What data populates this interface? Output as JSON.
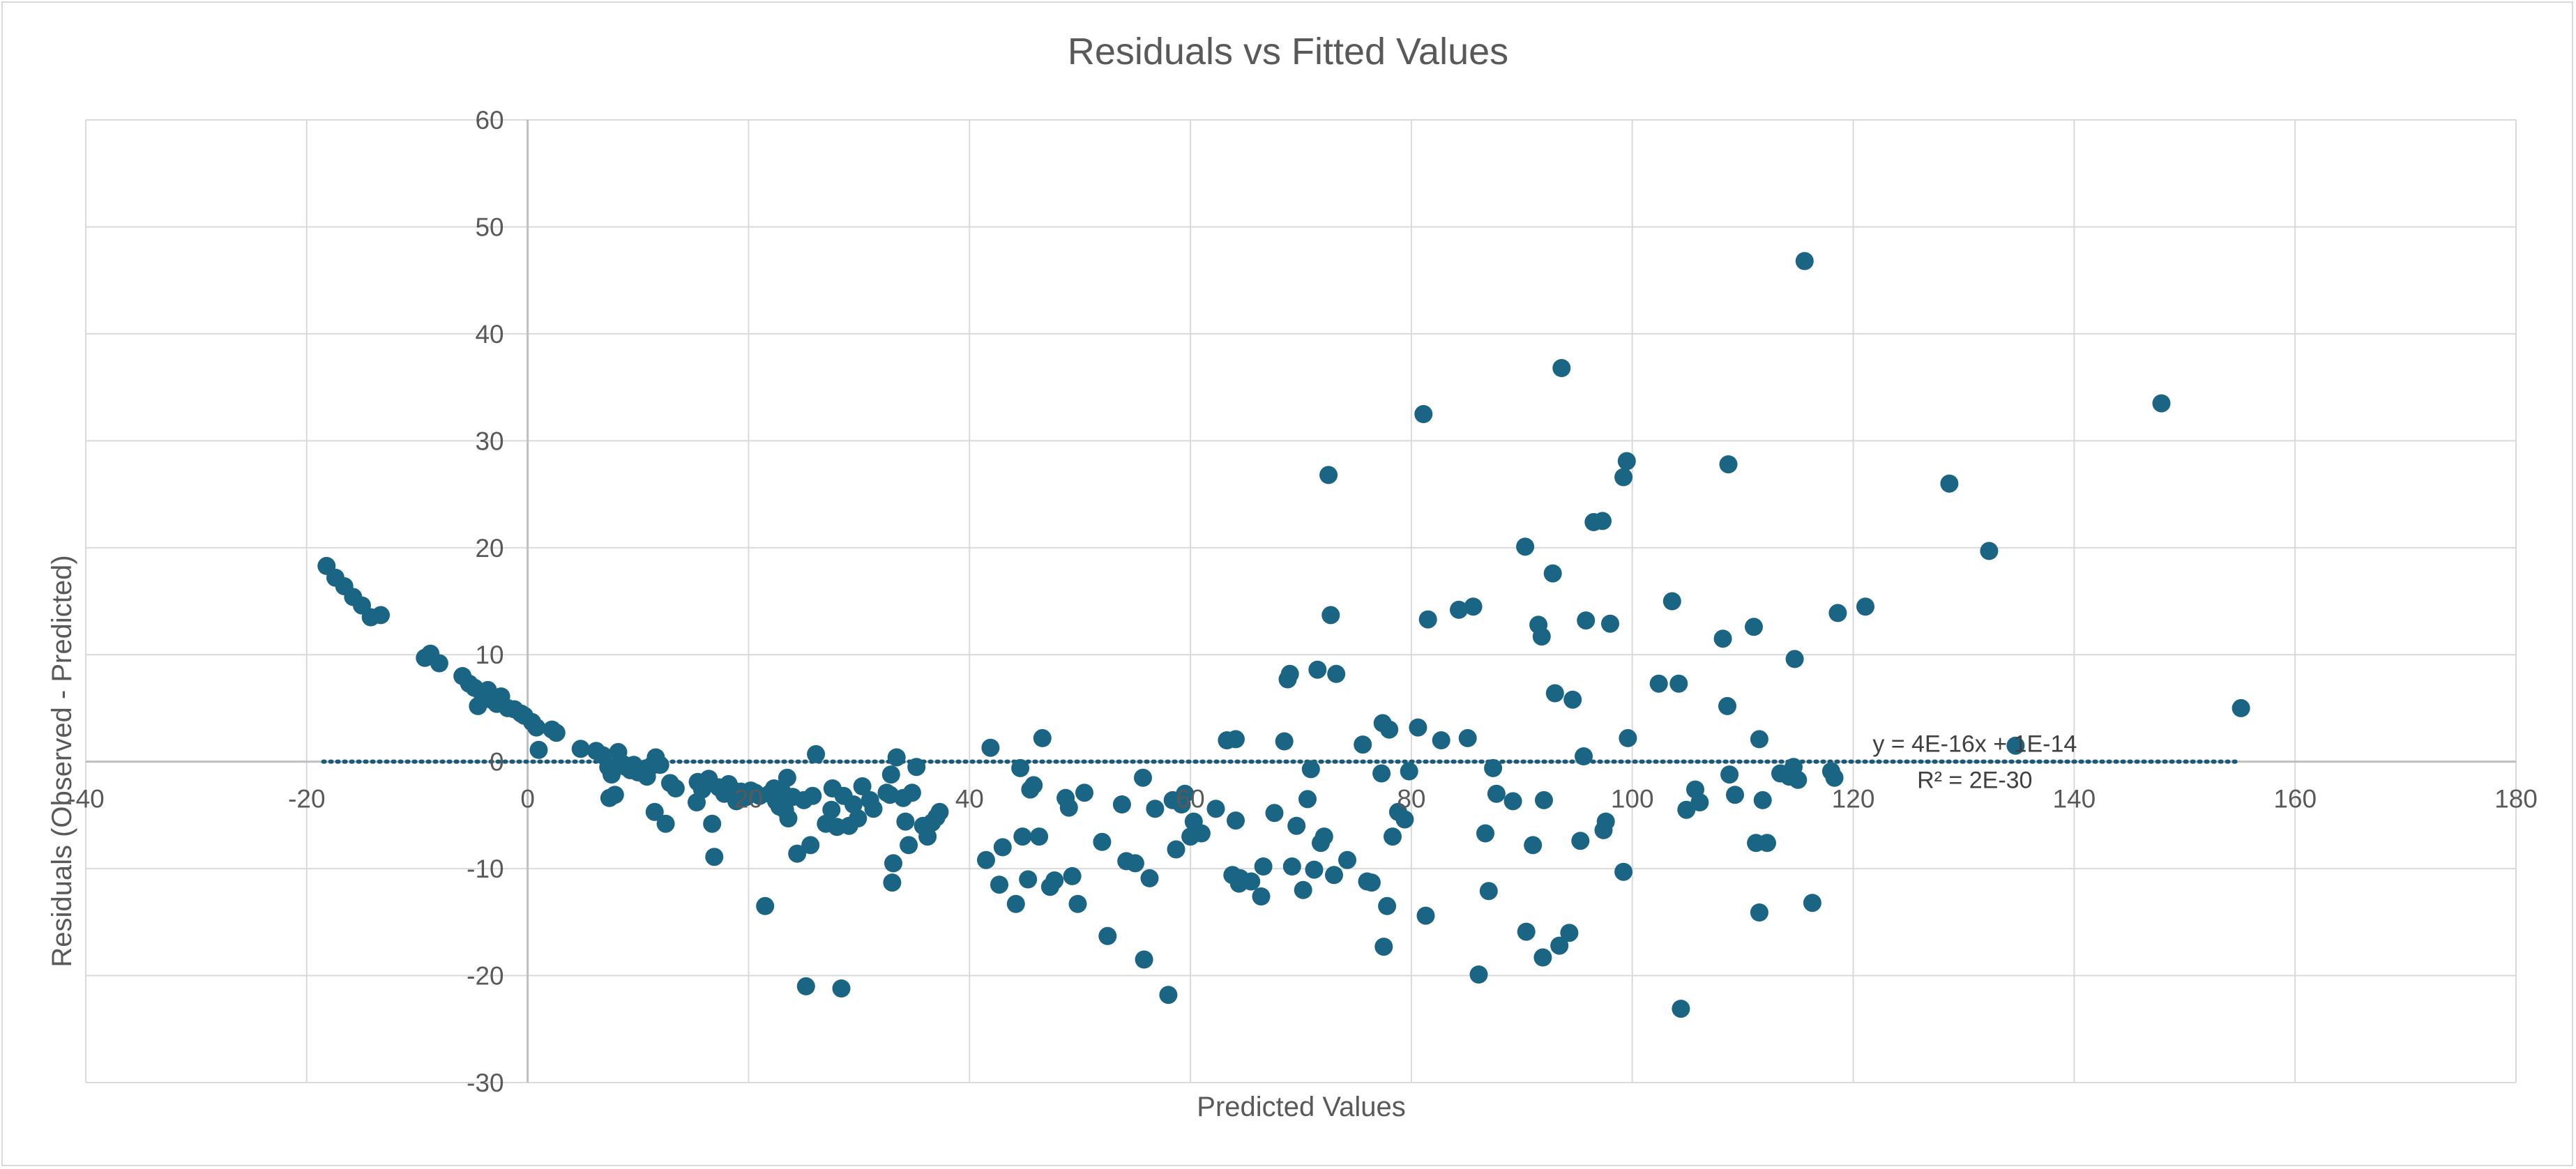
{
  "chart_data": {
    "type": "scatter",
    "title": "Residuals vs Fitted Values",
    "xlabel": "Predicted Values",
    "ylabel": "Residuals (Observed - Predicted)",
    "xlim": [
      -40,
      180
    ],
    "ylim": [
      -30,
      60
    ],
    "xticks": [
      "-40",
      "-20",
      "0",
      "20",
      "40",
      "60",
      "80",
      "100",
      "120",
      "140",
      "160",
      "180"
    ],
    "yticks": [
      "-30",
      "-20",
      "-10",
      "0",
      "10",
      "20",
      "30",
      "40",
      "50",
      "60"
    ],
    "grid": true,
    "colors": {
      "marker": "#1a6484",
      "trendline": "#1a5a78",
      "grid": "#d9d9d9"
    },
    "trendline": {
      "equation": "y = 4E-16x + 1E-14",
      "r2": "R² = 2E-30",
      "style": "dotted",
      "x_range": [
        -18.5,
        155
      ]
    },
    "points": [
      [
        -18.2,
        18.3
      ],
      [
        -17.4,
        17.2
      ],
      [
        -16.6,
        16.4
      ],
      [
        -15.8,
        15.4
      ],
      [
        -15.0,
        14.6
      ],
      [
        -14.2,
        13.5
      ],
      [
        -13.3,
        13.7
      ],
      [
        -9.3,
        9.7
      ],
      [
        -8.8,
        10.1
      ],
      [
        -8.0,
        9.2
      ],
      [
        -5.9,
        8.0
      ],
      [
        -5.3,
        7.3
      ],
      [
        -4.8,
        6.9
      ],
      [
        -4.2,
        6.5
      ],
      [
        -4.5,
        5.2
      ],
      [
        -3.6,
        6.7
      ],
      [
        -3.3,
        5.8
      ],
      [
        -2.8,
        5.4
      ],
      [
        -2.4,
        6.1
      ],
      [
        -1.8,
        5.0
      ],
      [
        -1.2,
        4.9
      ],
      [
        -0.6,
        4.5
      ],
      [
        -0.3,
        4.3
      ],
      [
        0.4,
        3.7
      ],
      [
        0.8,
        3.2
      ],
      [
        1.0,
        1.1
      ],
      [
        2.2,
        3.0
      ],
      [
        2.6,
        2.7
      ],
      [
        4.8,
        1.2
      ],
      [
        6.2,
        1.0
      ],
      [
        6.8,
        0.6
      ],
      [
        7.3,
        -0.5
      ],
      [
        7.6,
        -1.2
      ],
      [
        7.4,
        -3.4
      ],
      [
        7.9,
        -3.1
      ],
      [
        8.2,
        0.9
      ],
      [
        8.6,
        -0.2
      ],
      [
        8.9,
        -0.5
      ],
      [
        9.3,
        -0.8
      ],
      [
        9.6,
        -0.3
      ],
      [
        10.0,
        -1.0
      ],
      [
        10.4,
        -0.7
      ],
      [
        10.8,
        -1.4
      ],
      [
        11.2,
        -0.4
      ],
      [
        11.6,
        0.4
      ],
      [
        12.0,
        -0.3
      ],
      [
        11.5,
        -4.7
      ],
      [
        12.5,
        -5.8
      ],
      [
        12.9,
        -2.0
      ],
      [
        13.4,
        -2.5
      ],
      [
        15.4,
        -1.9
      ],
      [
        15.8,
        -2.6
      ],
      [
        15.3,
        -3.8
      ],
      [
        16.4,
        -1.6
      ],
      [
        16.7,
        -5.8
      ],
      [
        16.9,
        -8.9
      ],
      [
        17.3,
        -2.4
      ],
      [
        17.8,
        -3.0
      ],
      [
        18.2,
        -2.1
      ],
      [
        18.5,
        -2.6
      ],
      [
        18.9,
        -3.7
      ],
      [
        19.3,
        -2.8
      ],
      [
        19.8,
        -3.3
      ],
      [
        20.2,
        -2.7
      ],
      [
        20.6,
        -2.9
      ],
      [
        21.0,
        -3.2
      ],
      [
        21.5,
        -13.5
      ],
      [
        21.9,
        -3.0
      ],
      [
        22.3,
        -2.5
      ],
      [
        22.5,
        -3.7
      ],
      [
        22.8,
        -4.2
      ],
      [
        23.1,
        -2.9
      ],
      [
        23.3,
        -4.5
      ],
      [
        23.5,
        -1.5
      ],
      [
        23.6,
        -5.3
      ],
      [
        24.0,
        -3.3
      ],
      [
        24.4,
        -8.6
      ],
      [
        25.0,
        -3.6
      ],
      [
        25.2,
        -21.0
      ],
      [
        25.6,
        -7.8
      ],
      [
        25.8,
        -3.2
      ],
      [
        26.1,
        0.7
      ],
      [
        27.0,
        -5.8
      ],
      [
        27.5,
        -4.5
      ],
      [
        27.6,
        -2.5
      ],
      [
        28.0,
        -6.1
      ],
      [
        28.4,
        -21.2
      ],
      [
        28.6,
        -3.2
      ],
      [
        29.1,
        -6.0
      ],
      [
        29.5,
        -4.0
      ],
      [
        29.9,
        -5.3
      ],
      [
        30.3,
        -2.3
      ],
      [
        31.0,
        -3.6
      ],
      [
        31.3,
        -4.4
      ],
      [
        32.5,
        -2.9
      ],
      [
        32.8,
        -3.1
      ],
      [
        32.9,
        -1.2
      ],
      [
        33.1,
        -9.5
      ],
      [
        33.0,
        -11.3
      ],
      [
        33.4,
        0.4
      ],
      [
        34.0,
        -3.4
      ],
      [
        34.2,
        -5.6
      ],
      [
        34.5,
        -7.8
      ],
      [
        34.8,
        -2.9
      ],
      [
        35.2,
        -0.5
      ],
      [
        35.8,
        -6.0
      ],
      [
        36.2,
        -7.0
      ],
      [
        36.6,
        -5.7
      ],
      [
        37.0,
        -5.2
      ],
      [
        37.3,
        -4.7
      ],
      [
        41.5,
        -9.2
      ],
      [
        41.9,
        1.3
      ],
      [
        42.7,
        -11.5
      ],
      [
        43.0,
        -8.0
      ],
      [
        44.2,
        -13.3
      ],
      [
        44.6,
        -0.6
      ],
      [
        44.8,
        -7.0
      ],
      [
        45.3,
        -11.0
      ],
      [
        45.5,
        -2.6
      ],
      [
        45.8,
        -2.2
      ],
      [
        46.3,
        -7.0
      ],
      [
        46.6,
        2.2
      ],
      [
        47.3,
        -11.7
      ],
      [
        47.7,
        -11.1
      ],
      [
        48.7,
        -3.4
      ],
      [
        49.0,
        -4.3
      ],
      [
        49.3,
        -10.7
      ],
      [
        49.8,
        -13.3
      ],
      [
        50.4,
        -2.9
      ],
      [
        52.0,
        -7.5
      ],
      [
        52.5,
        -16.3
      ],
      [
        53.8,
        -4.0
      ],
      [
        54.2,
        -9.3
      ],
      [
        55.0,
        -9.5
      ],
      [
        55.7,
        -1.5
      ],
      [
        55.8,
        -18.5
      ],
      [
        56.3,
        -10.9
      ],
      [
        56.8,
        -4.4
      ],
      [
        58.0,
        -21.8
      ],
      [
        58.4,
        -3.6
      ],
      [
        58.7,
        -8.2
      ],
      [
        59.2,
        -4.0
      ],
      [
        59.5,
        -3.0
      ],
      [
        60.0,
        -7.0
      ],
      [
        60.3,
        -5.6
      ],
      [
        61.0,
        -6.7
      ],
      [
        62.3,
        -4.4
      ],
      [
        63.3,
        2.0
      ],
      [
        63.8,
        -10.6
      ],
      [
        64.1,
        -5.5
      ],
      [
        64.4,
        -11.4
      ],
      [
        64.1,
        2.1
      ],
      [
        64.5,
        -10.9
      ],
      [
        65.5,
        -11.2
      ],
      [
        66.4,
        -12.6
      ],
      [
        66.6,
        -9.8
      ],
      [
        67.6,
        -4.8
      ],
      [
        68.5,
        1.9
      ],
      [
        68.8,
        7.7
      ],
      [
        69.0,
        8.2
      ],
      [
        69.2,
        -9.8
      ],
      [
        69.6,
        -6.0
      ],
      [
        70.2,
        -12.0
      ],
      [
        70.6,
        -3.5
      ],
      [
        70.9,
        -0.7
      ],
      [
        71.2,
        -10.1
      ],
      [
        71.5,
        8.6
      ],
      [
        71.8,
        -7.6
      ],
      [
        72.1,
        -7.0
      ],
      [
        72.5,
        26.8
      ],
      [
        72.7,
        13.7
      ],
      [
        73.0,
        -10.6
      ],
      [
        73.2,
        8.2
      ],
      [
        74.2,
        -9.2
      ],
      [
        75.6,
        1.6
      ],
      [
        76.0,
        -11.2
      ],
      [
        76.4,
        -11.3
      ],
      [
        77.3,
        -1.1
      ],
      [
        77.4,
        3.6
      ],
      [
        77.5,
        -17.3
      ],
      [
        77.8,
        -13.5
      ],
      [
        78.0,
        3.0
      ],
      [
        78.3,
        -7.0
      ],
      [
        78.8,
        -4.7
      ],
      [
        79.4,
        -5.4
      ],
      [
        79.8,
        -0.9
      ],
      [
        80.6,
        3.2
      ],
      [
        81.1,
        32.5
      ],
      [
        81.3,
        -14.4
      ],
      [
        81.5,
        13.3
      ],
      [
        82.7,
        2.0
      ],
      [
        84.3,
        14.2
      ],
      [
        85.1,
        2.2
      ],
      [
        85.6,
        14.5
      ],
      [
        86.1,
        -19.9
      ],
      [
        86.7,
        -6.7
      ],
      [
        87.0,
        -12.1
      ],
      [
        87.4,
        -0.6
      ],
      [
        87.7,
        -3.0
      ],
      [
        89.2,
        -3.7
      ],
      [
        90.3,
        20.1
      ],
      [
        90.4,
        -15.9
      ],
      [
        91.0,
        -7.8
      ],
      [
        91.5,
        12.8
      ],
      [
        91.8,
        11.7
      ],
      [
        91.9,
        -18.3
      ],
      [
        92.0,
        -3.6
      ],
      [
        92.8,
        17.6
      ],
      [
        93.0,
        6.4
      ],
      [
        93.4,
        -17.2
      ],
      [
        93.6,
        36.8
      ],
      [
        94.3,
        -16.0
      ],
      [
        94.6,
        5.8
      ],
      [
        95.3,
        -7.4
      ],
      [
        95.6,
        0.5
      ],
      [
        95.8,
        13.2
      ],
      [
        96.5,
        22.4
      ],
      [
        97.3,
        22.5
      ],
      [
        97.4,
        -6.4
      ],
      [
        97.6,
        -5.6
      ],
      [
        98.0,
        12.9
      ],
      [
        99.2,
        -10.3
      ],
      [
        99.2,
        26.6
      ],
      [
        99.5,
        28.1
      ],
      [
        99.6,
        2.2
      ],
      [
        102.4,
        7.3
      ],
      [
        103.6,
        15.0
      ],
      [
        104.2,
        7.3
      ],
      [
        104.4,
        -23.1
      ],
      [
        104.9,
        -4.5
      ],
      [
        105.7,
        -2.6
      ],
      [
        106.1,
        -3.8
      ],
      [
        108.2,
        11.5
      ],
      [
        108.6,
        5.2
      ],
      [
        108.7,
        27.8
      ],
      [
        108.8,
        -1.2
      ],
      [
        109.3,
        -3.1
      ],
      [
        111.0,
        12.6
      ],
      [
        111.2,
        -7.6
      ],
      [
        111.5,
        2.1
      ],
      [
        111.5,
        -14.1
      ],
      [
        111.8,
        -3.6
      ],
      [
        112.2,
        -7.6
      ],
      [
        113.4,
        -1.1
      ],
      [
        114.2,
        -1.4
      ],
      [
        114.6,
        -0.5
      ],
      [
        114.7,
        9.6
      ],
      [
        115.0,
        -1.7
      ],
      [
        115.6,
        46.8
      ],
      [
        116.3,
        -13.2
      ],
      [
        118.0,
        -0.9
      ],
      [
        118.3,
        -1.5
      ],
      [
        118.6,
        13.9
      ],
      [
        121.1,
        14.5
      ],
      [
        128.7,
        26.0
      ],
      [
        132.3,
        19.7
      ],
      [
        134.7,
        1.5
      ],
      [
        147.9,
        33.5
      ],
      [
        155.1,
        5.0
      ]
    ]
  }
}
